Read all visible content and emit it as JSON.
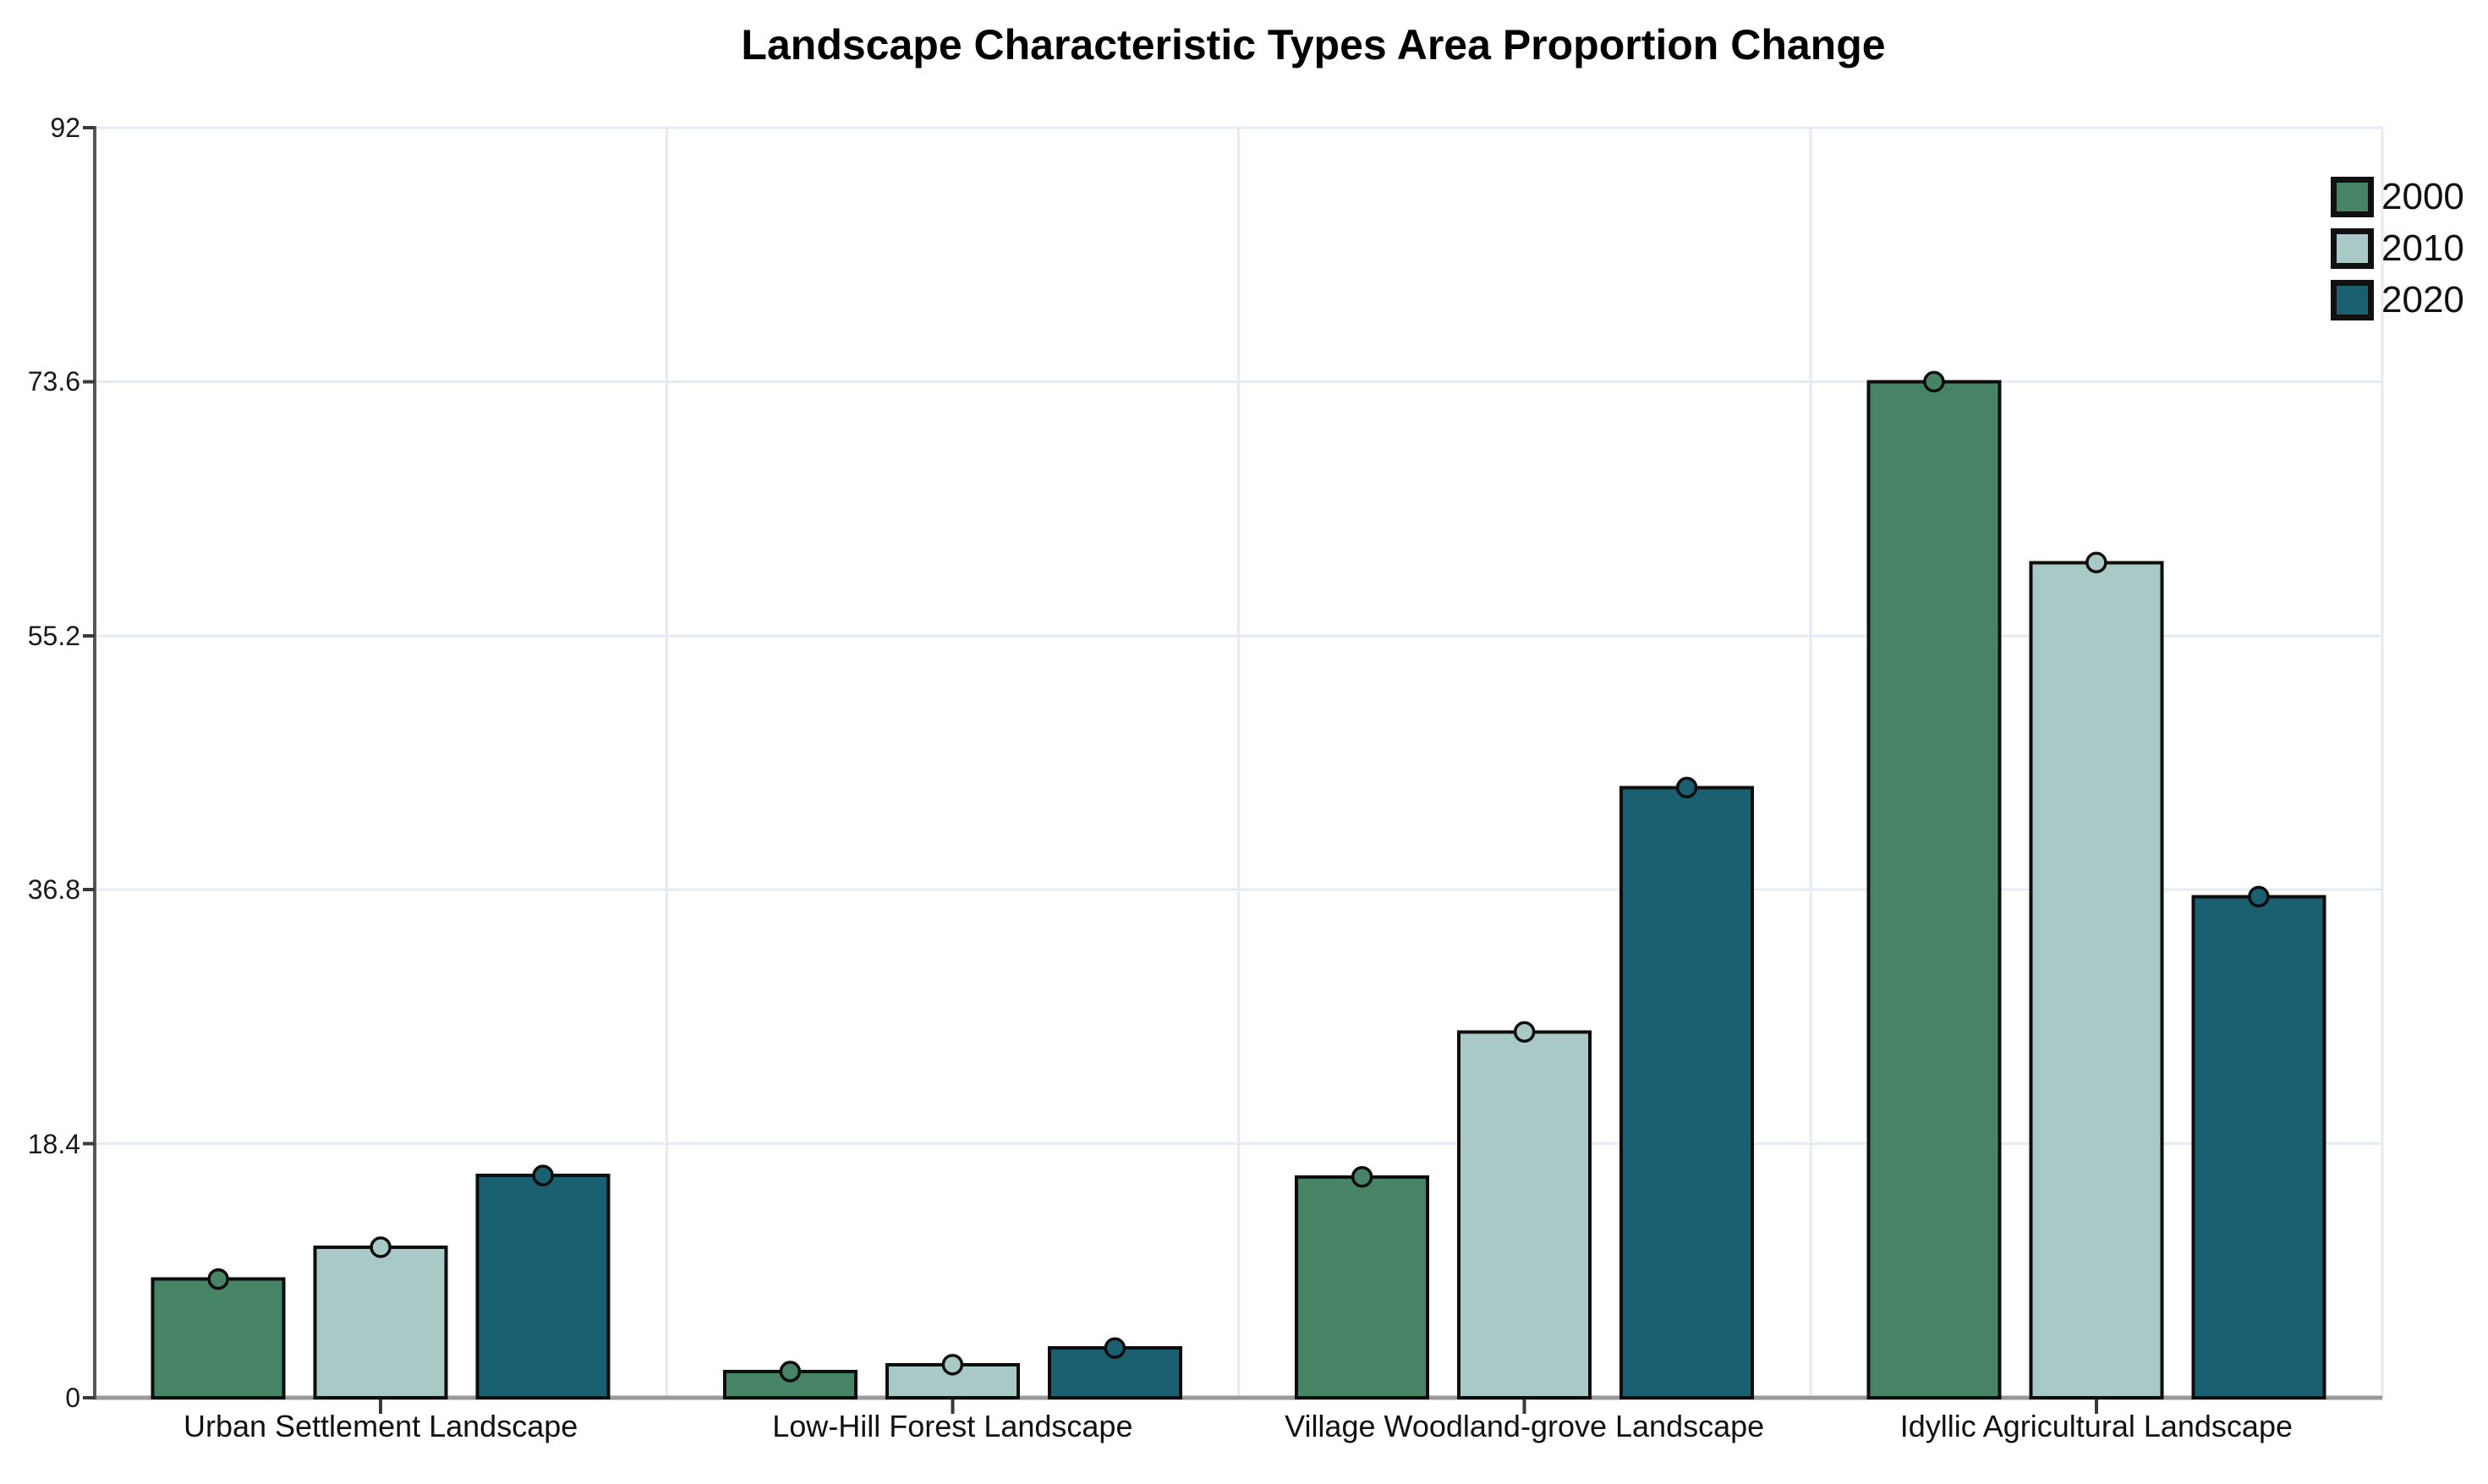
{
  "chart_data": {
    "type": "bar",
    "title": "Landscape Characteristic Types Area Proportion Change",
    "categories": [
      "Urban Settlement Landscape",
      "Low-Hill Forest Landscape",
      "Village Woodland-grove Landscape",
      "Idyllic Agricultural Landscape"
    ],
    "series": [
      {
        "name": "2000",
        "color": "#478465",
        "values": [
          8.6,
          1.9,
          16.0,
          73.6
        ]
      },
      {
        "name": "2010",
        "color": "#a9c9c7",
        "values": [
          10.9,
          2.4,
          26.5,
          60.5
        ]
      },
      {
        "name": "2020",
        "color": "#1a6071",
        "values": [
          16.1,
          3.6,
          44.2,
          36.3
        ]
      }
    ],
    "ylim": [
      0,
      92
    ],
    "yticks": [
      0,
      18.4,
      36.8,
      55.2,
      73.6,
      92
    ],
    "ytick_labels": [
      "0",
      "18.4",
      "36.8",
      "55.2",
      "73.6",
      "92"
    ],
    "xlabel": "",
    "ylabel": "",
    "grid": true,
    "legend_position": "top-right",
    "marker": "circle at top center of each bar"
  },
  "colors": {
    "background": "#ffffff",
    "gridline": "#e4ebf5",
    "y_axis": "#565656",
    "baseline": "#999999",
    "tick": "#3a3a3a",
    "bar_edge": "#0d0d0d",
    "marker_edge": "#0d0d0d",
    "text": "#111111"
  }
}
